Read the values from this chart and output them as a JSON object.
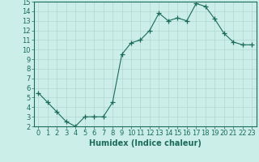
{
  "x": [
    0,
    1,
    2,
    3,
    4,
    5,
    6,
    7,
    8,
    9,
    10,
    11,
    12,
    13,
    14,
    15,
    16,
    17,
    18,
    19,
    20,
    21,
    22,
    23
  ],
  "y": [
    5.5,
    4.5,
    3.5,
    2.5,
    2.0,
    3.0,
    3.0,
    3.0,
    4.5,
    9.5,
    10.7,
    11.0,
    12.0,
    13.8,
    13.0,
    13.3,
    13.0,
    14.8,
    14.5,
    13.2,
    11.7,
    10.8,
    10.5,
    10.5
  ],
  "line_color": "#1a6b5a",
  "marker": "+",
  "marker_size": 4,
  "bg_color": "#cceee8",
  "grid_color": "#b0d8d0",
  "xlabel": "Humidex (Indice chaleur)",
  "xlim": [
    -0.5,
    23.5
  ],
  "ylim": [
    2,
    15
  ],
  "yticks": [
    2,
    3,
    4,
    5,
    6,
    7,
    8,
    9,
    10,
    11,
    12,
    13,
    14,
    15
  ],
  "xticks": [
    0,
    1,
    2,
    3,
    4,
    5,
    6,
    7,
    8,
    9,
    10,
    11,
    12,
    13,
    14,
    15,
    16,
    17,
    18,
    19,
    20,
    21,
    22,
    23
  ],
  "tick_font_size": 6,
  "label_font_size": 7
}
